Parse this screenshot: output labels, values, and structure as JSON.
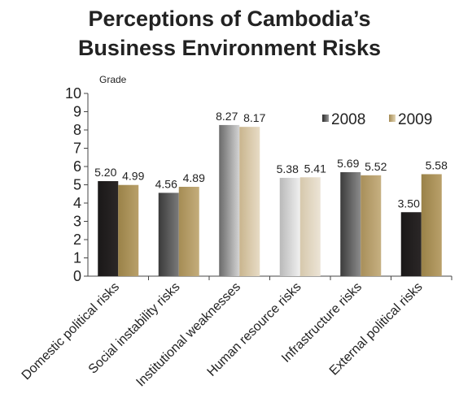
{
  "chart_data": {
    "type": "bar",
    "title_lines": [
      "Perceptions of Cambodia’s",
      "Business Environment Risks"
    ],
    "ylabel": "Grade",
    "xlabel": "",
    "ylim": [
      0,
      10
    ],
    "yticks": [
      "0",
      "1",
      "2",
      "3",
      "4",
      "5",
      "6",
      "7",
      "8",
      "9",
      "10"
    ],
    "grid": false,
    "legend_position": "top-right",
    "categories": [
      "Domestic political risks",
      "Social instability risks",
      "Institutional weaknesses",
      "Human resource risks",
      "Infrastructure risks",
      "External political risks"
    ],
    "series": [
      {
        "name": "2008",
        "values": [
          5.2,
          4.56,
          8.27,
          5.38,
          5.69,
          3.5
        ],
        "labels": [
          "5.20",
          "4.56",
          "8.27",
          "5.38",
          "5.69",
          "3.50"
        ]
      },
      {
        "name": "2009",
        "values": [
          4.99,
          4.89,
          8.17,
          5.41,
          5.52,
          5.58
        ],
        "labels": [
          "4.99",
          "4.89",
          "8.17",
          "5.41",
          "5.52",
          "5.58"
        ]
      }
    ],
    "bar_gradients": [
      [
        [
          "#1a1818",
          "#2b2727"
        ],
        [
          "#9a8248",
          "#b9a06a"
        ]
      ],
      [
        [
          "#3a3a3a",
          "#7a7a7a"
        ],
        [
          "#a58c55",
          "#c4ad7b"
        ]
      ],
      [
        [
          "#6a6a6a",
          "#d4d4d4"
        ],
        [
          "#c9b58e",
          "#e8dcc6"
        ]
      ],
      [
        [
          "#b9b9b9",
          "#f0f0f0"
        ],
        [
          "#d6c8ac",
          "#ece4d6"
        ]
      ],
      [
        [
          "#3c3c3c",
          "#8c8c8c"
        ],
        [
          "#a88f5a",
          "#c6b081"
        ]
      ],
      [
        [
          "#1a1818",
          "#2b2727"
        ],
        [
          "#9a8248",
          "#b9a06a"
        ]
      ]
    ],
    "legend_swatch_colors": [
      [
        "#2a2a2a",
        "#9a9a9a"
      ],
      [
        "#a58c55",
        "#e2d4b4"
      ]
    ]
  }
}
